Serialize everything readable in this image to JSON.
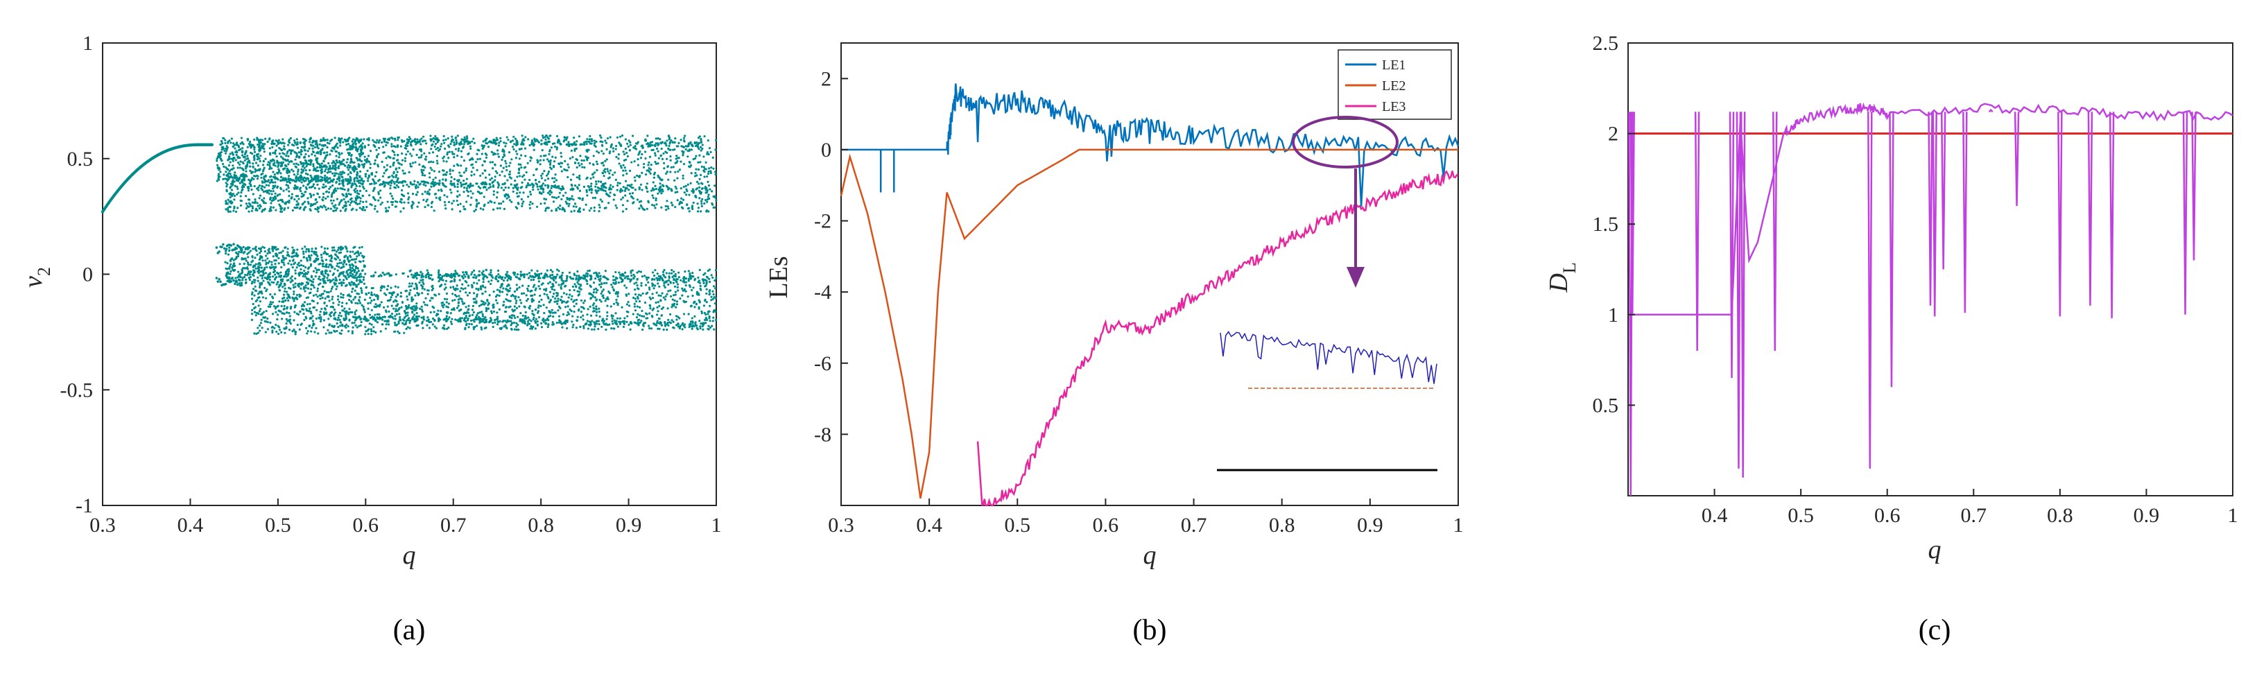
{
  "colors": {
    "bifurcation": "#008b8b",
    "le1": "#0072bd",
    "le2": "#d95319",
    "le3": "#e6259f",
    "dl": "#c040e0",
    "dl_ref": "#e02020",
    "annotation": "#7e2f8e",
    "inset_le1": "#1f1fb4",
    "inset_le2": "#d95319",
    "axis": "#262626"
  },
  "chart_data": [
    {
      "id": "a",
      "type": "scatter",
      "caption": "(a)",
      "xlabel": "q",
      "ylabel": "v",
      "ylabel_sub": "2",
      "xlim": [
        0.3,
        1
      ],
      "ylim": [
        -1,
        1
      ],
      "xticks": [
        "0.3",
        "0.4",
        "0.5",
        "0.6",
        "0.7",
        "0.8",
        "0.9",
        "1"
      ],
      "yticks": [
        "1",
        "0.5",
        "0",
        "-0.5",
        "-1"
      ],
      "description": "bifurcation diagram",
      "series": [
        {
          "name": "v2 maxima",
          "points_description": "period-1 branch 0.30-0.42 rising 0.27 to 0.56; two chaotic bands 0.43-1 (upper 0.27-0.60, lower -0.26-0.12)"
        }
      ]
    },
    {
      "id": "b",
      "type": "line",
      "caption": "(b)",
      "xlabel": "q",
      "ylabel": "LEs",
      "xlim": [
        0.3,
        1
      ],
      "ylim": [
        -10,
        3
      ],
      "xticks": [
        "0.3",
        "0.4",
        "0.5",
        "0.6",
        "0.7",
        "0.8",
        "0.9",
        "1"
      ],
      "yticks": [
        "2",
        "0",
        "-2",
        "-4",
        "-6",
        "-8"
      ],
      "legend": [
        "LE1",
        "LE2",
        "LE3"
      ],
      "series": [
        {
          "name": "LE1",
          "x": [
            0.3,
            0.42,
            0.43,
            0.45,
            0.5,
            0.55,
            0.6,
            0.65,
            0.7,
            0.8,
            0.9,
            1.0
          ],
          "y": [
            0.0,
            0.0,
            1.6,
            1.2,
            1.4,
            1.1,
            0.5,
            0.6,
            0.4,
            0.2,
            0.15,
            0.1
          ]
        },
        {
          "name": "LE2",
          "x": [
            0.3,
            0.31,
            0.33,
            0.35,
            0.37,
            0.38,
            0.39,
            0.4,
            0.41,
            0.42,
            0.44,
            0.46,
            0.5,
            0.55,
            0.57,
            0.6,
            0.7,
            0.8,
            0.9,
            1.0
          ],
          "y": [
            -1.3,
            -0.2,
            -1.8,
            -4.0,
            -6.5,
            -8.0,
            -9.8,
            -8.5,
            -4.0,
            -1.2,
            -2.5,
            -2.0,
            -1.0,
            -0.3,
            0.0,
            0.0,
            0.0,
            0.0,
            0.0,
            0.0
          ]
        },
        {
          "name": "LE3",
          "x": [
            0.46,
            0.5,
            0.55,
            0.6,
            0.65,
            0.7,
            0.75,
            0.8,
            0.85,
            0.9,
            0.95,
            1.0
          ],
          "y": [
            -10,
            -9.5,
            -7.0,
            -5.0,
            -5.0,
            -4.1,
            -3.4,
            -2.6,
            -2.0,
            -1.5,
            -1.0,
            -0.7
          ]
        }
      ],
      "annotation": "ellipse around q 0.82-0.93 near 0 with downward arrow to inset"
    },
    {
      "id": "c",
      "type": "line",
      "caption": "(c)",
      "xlabel": "q",
      "ylabel": "D",
      "ylabel_sub": "L",
      "xlim": [
        0.3,
        1
      ],
      "ylim": [
        0,
        2.5
      ],
      "xticks": [
        "0.4",
        "0.5",
        "0.6",
        "0.7",
        "0.8",
        "0.9",
        "1"
      ],
      "yticks": [
        "2.5",
        "2",
        "1.5",
        "1",
        "0.5"
      ],
      "series": [
        {
          "name": "DL",
          "x": [
            0.3,
            0.42,
            0.43,
            0.44,
            0.45,
            0.46,
            0.47,
            0.48,
            0.5,
            0.55,
            0.58,
            0.6,
            0.7,
            0.8,
            0.9,
            1.0
          ],
          "y": [
            1.0,
            1.0,
            2.07,
            1.3,
            1.4,
            1.6,
            1.8,
            2.0,
            2.08,
            2.13,
            2.15,
            2.1,
            2.14,
            2.13,
            2.1,
            2.1
          ]
        },
        {
          "name": "reference",
          "x": [
            0.3,
            1.0
          ],
          "y": [
            2.0,
            2.0
          ]
        }
      ]
    }
  ]
}
